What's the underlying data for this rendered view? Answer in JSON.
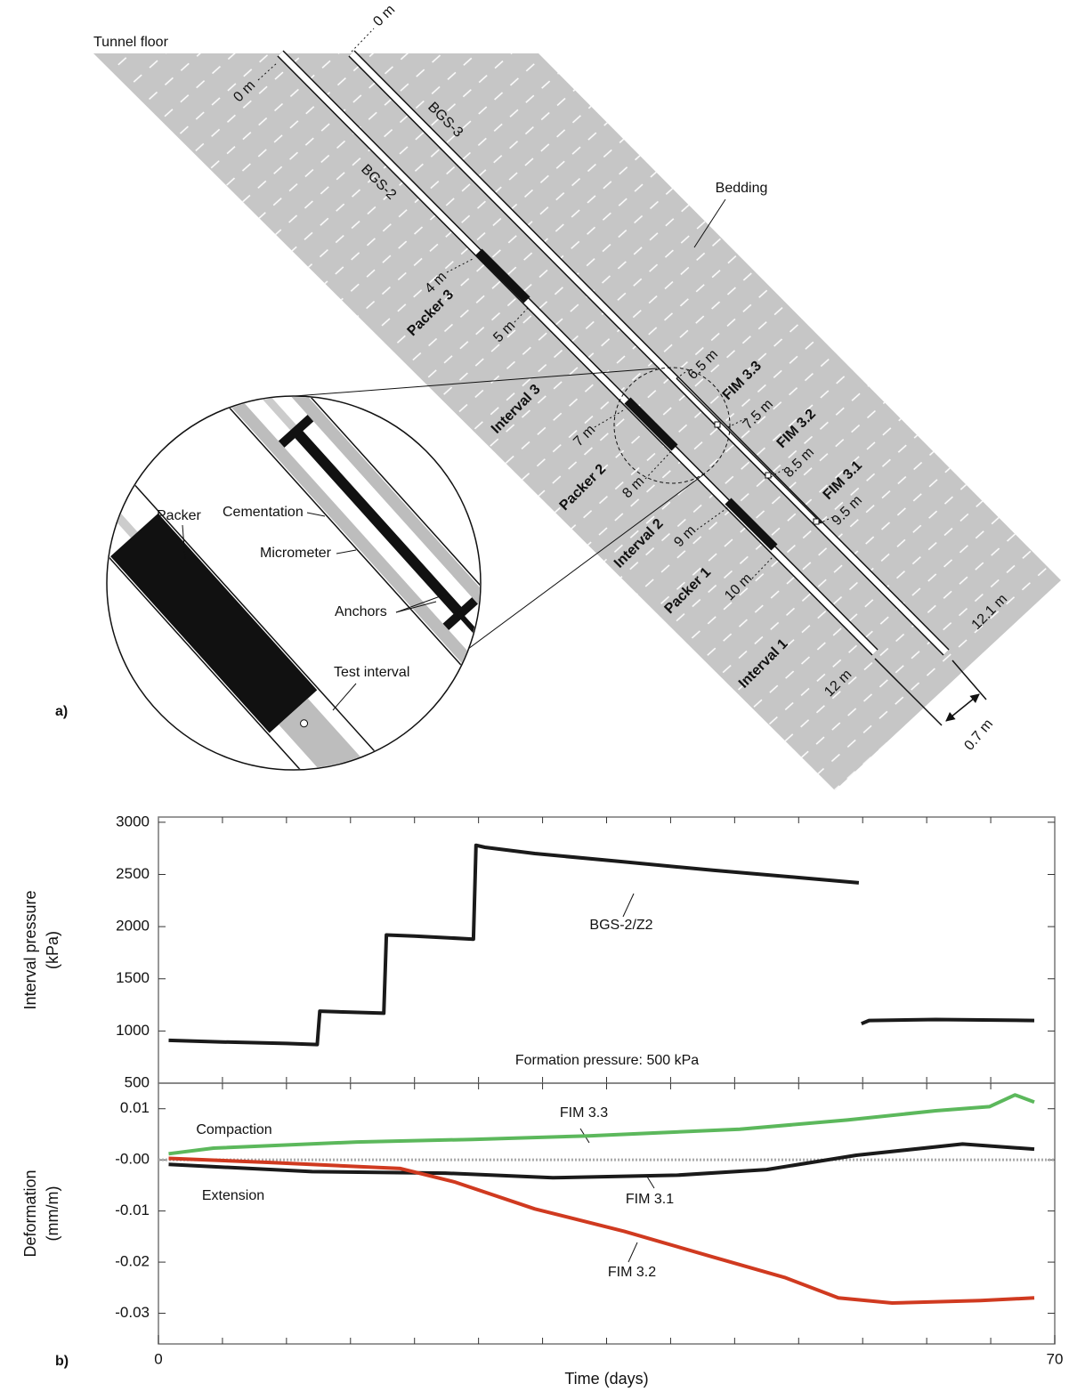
{
  "diagram": {
    "panel": "a)",
    "tunnel_floor": "Tunnel floor",
    "bgs3_zero": "0 m",
    "bgs2_zero": "0 m",
    "bgs3": "BGS-3",
    "bgs2": "BGS-2",
    "bedding": "Bedding",
    "d4": "4 m",
    "d5": "5 m",
    "packer3": "Packer 3",
    "d65": "6.5 m",
    "fim33": "FIM 3.3",
    "d75": "7.5 m",
    "fim32": "FIM 3.2",
    "interval3": "Interval 3",
    "d7": "7 m",
    "d85": "8.5 m",
    "fim31": "FIM 3.1",
    "packer2": "Packer 2",
    "d8": "8 m",
    "d95": "9.5 m",
    "interval2": "Interval 2",
    "d9": "9 m",
    "packer1": "Packer 1",
    "d10": "10 m",
    "d121": "12.1 m",
    "interval1": "Interval 1",
    "d12": "12 m",
    "d07": "0.7 m",
    "inset": {
      "packer": "Packer",
      "cementation": "Cementation",
      "micrometer": "Micrometer",
      "anchors": "Anchors",
      "test_interval": "Test interval"
    }
  },
  "panel_b": "b)",
  "chart_data": [
    {
      "type": "line",
      "ylabel": [
        "Interval pressure",
        "(kPa)"
      ],
      "xlim": [
        0,
        70
      ],
      "ylim": [
        500,
        3050
      ],
      "yticks": [
        500,
        1000,
        1500,
        2000,
        2500,
        3000
      ],
      "xminorticks": [
        5,
        10,
        15,
        20,
        25,
        30,
        35,
        40,
        45,
        50,
        55,
        60,
        65
      ],
      "annotations": [
        "Formation pressure: 500 kPa"
      ],
      "series": [
        {
          "name": "BGS-2/Z2",
          "color": "#1a1a1a",
          "x": [
            0.8,
            5,
            10,
            12.4,
            12.6,
            15,
            17.6,
            17.8,
            20,
            24.6,
            24.8,
            25.5,
            29.4,
            36.4,
            43.3,
            50,
            54.7,
            54.8,
            54.9,
            55.5,
            60.7,
            68.4
          ],
          "values": [
            910,
            895,
            880,
            870,
            1190,
            1180,
            1170,
            1920,
            1910,
            1880,
            2780,
            2760,
            2700,
            2620,
            2540,
            2470,
            2420,
            null,
            1070,
            1100,
            1110,
            1100
          ]
        }
      ]
    },
    {
      "type": "line",
      "ylabel": [
        "Deformation",
        "(mm/m)"
      ],
      "xlabel": "Time (days)",
      "xlim": [
        0,
        70
      ],
      "ylim": [
        -0.036,
        0.015
      ],
      "xticks": [
        0,
        70
      ],
      "xminorticks": [
        5,
        10,
        15,
        20,
        25,
        30,
        35,
        40,
        45,
        50,
        55,
        60,
        65
      ],
      "yticks": [
        0.01,
        {
          "value": 0,
          "label": "-0.00"
        },
        -0.01,
        -0.02,
        -0.03
      ],
      "zero_line": true,
      "annotations": [
        "Compaction",
        "Extension"
      ],
      "series": [
        {
          "name": "FIM 3.3",
          "color": "#5cb85c",
          "x": [
            0.8,
            4.3,
            15.5,
            24.5,
            33.6,
            45.4,
            53.8,
            60.7,
            64.9,
            66.9,
            68.4
          ],
          "values": [
            0.0012,
            0.0023,
            0.0035,
            0.004,
            0.0047,
            0.006,
            0.0078,
            0.0096,
            0.0104,
            0.0127,
            0.0113
          ]
        },
        {
          "name": "FIM 3.1",
          "color": "#1a1a1a",
          "x": [
            0.8,
            12,
            22.4,
            30.8,
            40.5,
            47.5,
            54.5,
            62.8,
            68.4
          ],
          "values": [
            -0.0009,
            -0.0023,
            -0.0026,
            -0.0035,
            -0.003,
            -0.0019,
            0.0009,
            0.0031,
            0.0021
          ]
        },
        {
          "name": "FIM 3.2",
          "color": "#d03a20",
          "x": [
            0.8,
            8.5,
            18.9,
            23.1,
            29.4,
            36.4,
            43.3,
            48.9,
            53.1,
            57.3,
            64.2,
            68.4
          ],
          "values": [
            0.0003,
            -0.0005,
            -0.0017,
            -0.0043,
            -0.0096,
            -0.014,
            -0.019,
            -0.023,
            -0.027,
            -0.028,
            -0.0275,
            -0.027
          ]
        }
      ]
    }
  ]
}
